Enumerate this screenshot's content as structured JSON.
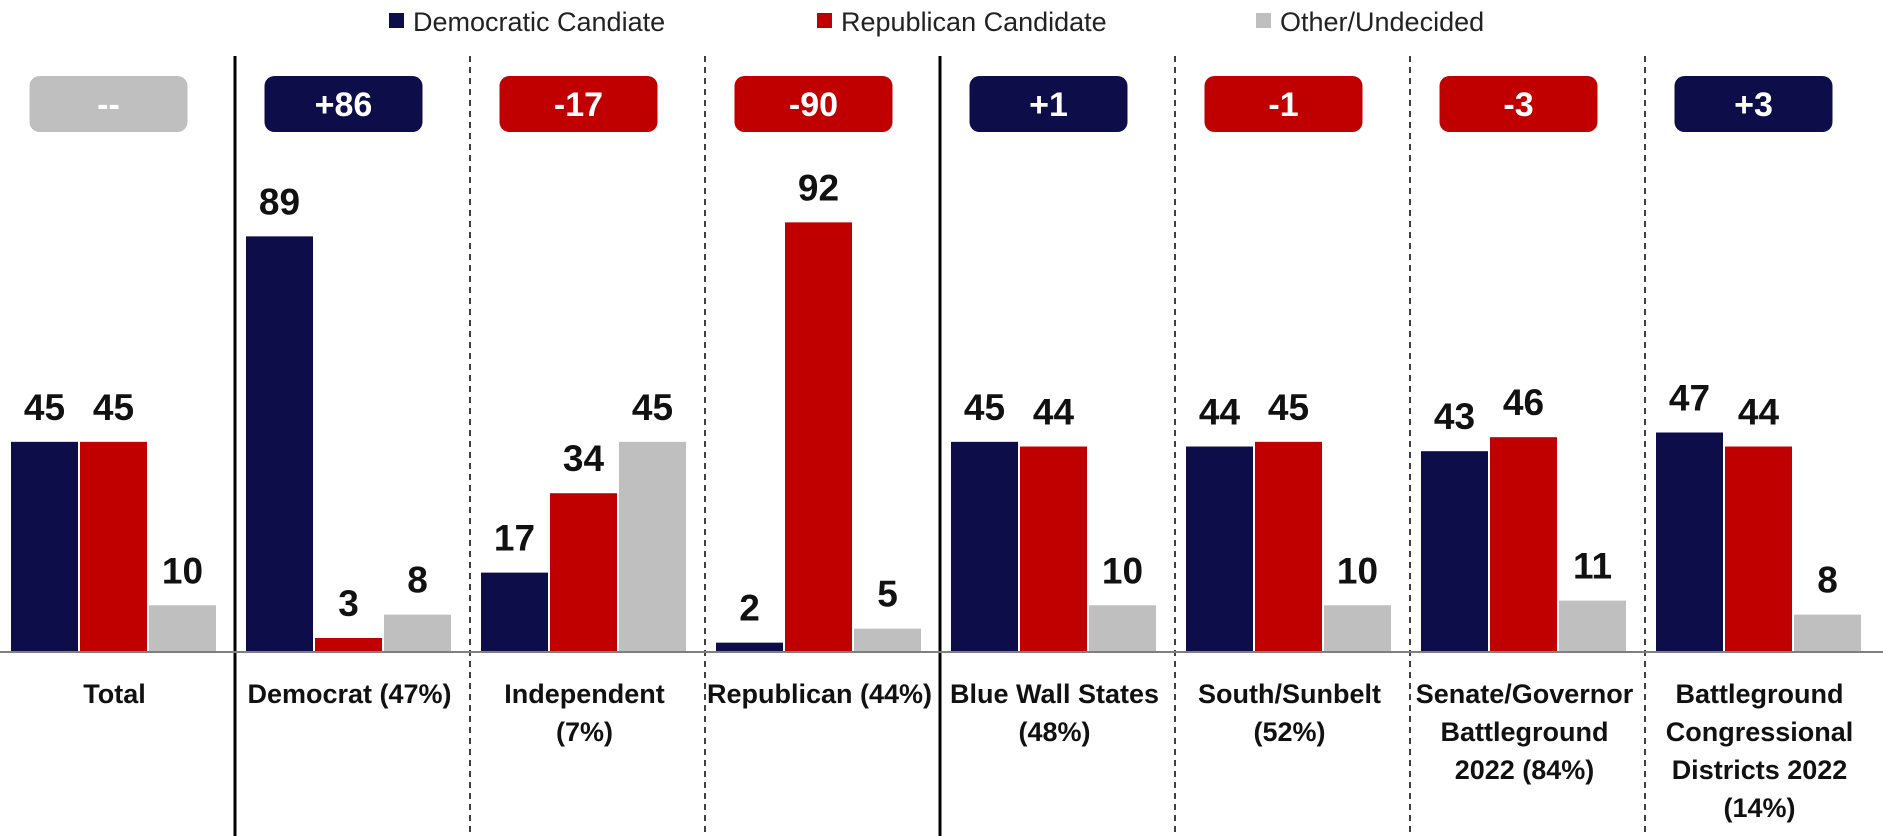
{
  "chart_data": {
    "type": "bar",
    "legend_position": "top-center",
    "grid": false,
    "ylim": [
      0,
      100
    ],
    "categories": [
      [
        "Total"
      ],
      [
        "Democrat (47%)"
      ],
      [
        "Independent",
        "(7%)"
      ],
      [
        "Republican (44%)"
      ],
      [
        "Blue Wall States",
        "(48%)"
      ],
      [
        "South/Sunbelt",
        "(52%)"
      ],
      [
        "Senate/Governor",
        "Battleground",
        "2022 (84%)"
      ],
      [
        "Battleground",
        "Congressional",
        "Districts 2022",
        "(14%)"
      ]
    ],
    "series": [
      {
        "name": "Democratic Candiate",
        "color": "#0d0d4a",
        "values": [
          45,
          89,
          17,
          2,
          45,
          44,
          43,
          47
        ]
      },
      {
        "name": "Republican Candidate",
        "color": "#c00000",
        "values": [
          45,
          3,
          34,
          92,
          44,
          45,
          46,
          44
        ]
      },
      {
        "name": "Other/Undecided",
        "color": "#bfbfbf",
        "values": [
          10,
          8,
          45,
          5,
          10,
          10,
          11,
          8
        ]
      }
    ],
    "margins": [
      {
        "label": "--",
        "color": "#bfbfbf"
      },
      {
        "label": "+86",
        "color": "#0d0d4a"
      },
      {
        "label": "-17",
        "color": "#c00000"
      },
      {
        "label": "-90",
        "color": "#c00000"
      },
      {
        "label": "+1",
        "color": "#0d0d4a"
      },
      {
        "label": "-1",
        "color": "#c00000"
      },
      {
        "label": "-3",
        "color": "#c00000"
      },
      {
        "label": "+3",
        "color": "#0d0d4a"
      }
    ],
    "separators": [
      "solid",
      "dashed",
      "dashed",
      "solid",
      "dashed",
      "dashed",
      "dashed"
    ]
  }
}
